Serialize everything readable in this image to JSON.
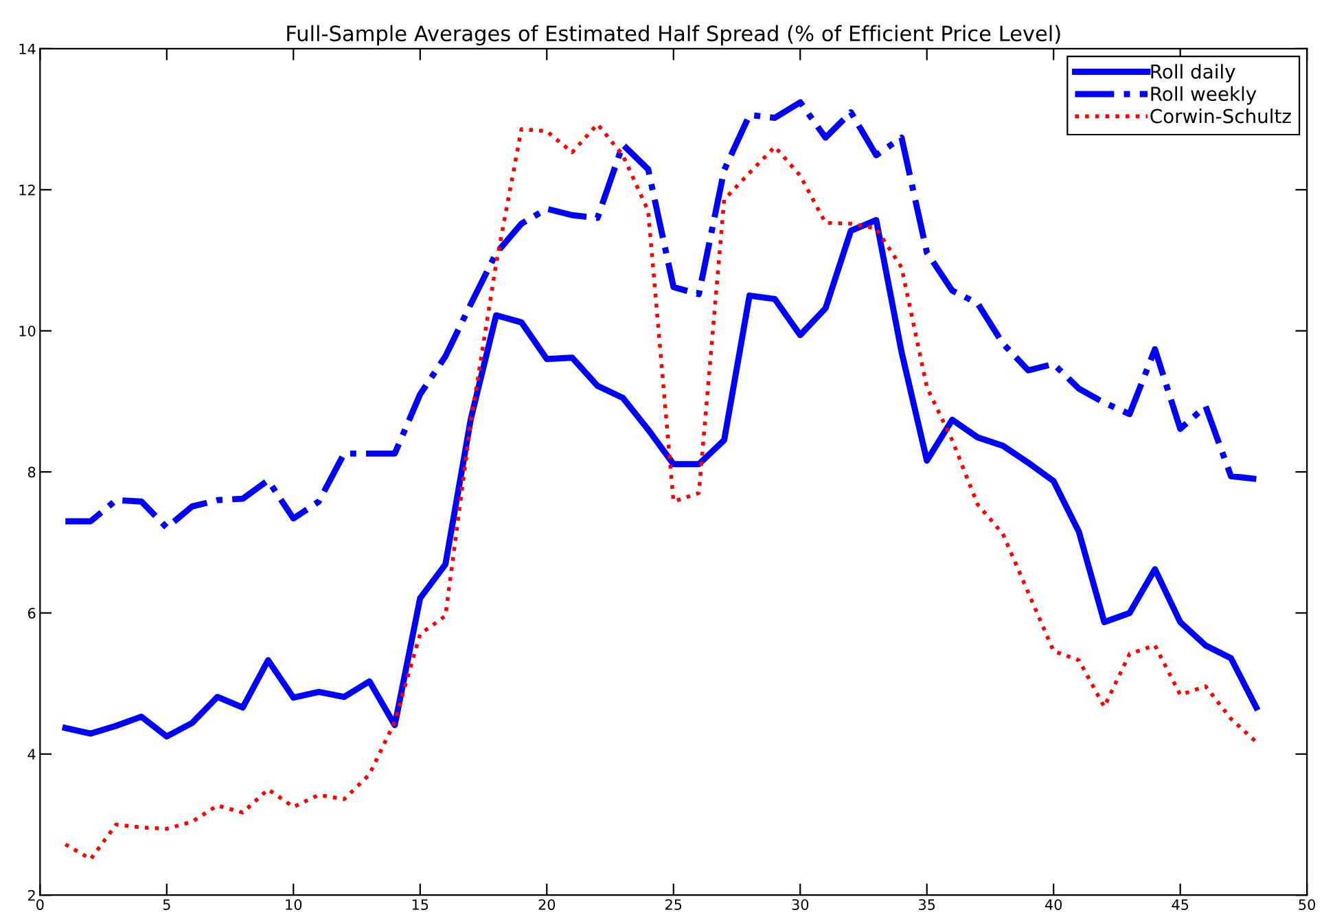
{
  "chart_data": {
    "type": "line",
    "title": "Full-Sample Averages of Estimated Half Spread (% of Efficient Price Level)",
    "x": [
      1,
      2,
      3,
      4,
      5,
      6,
      7,
      8,
      9,
      10,
      11,
      12,
      13,
      14,
      15,
      16,
      17,
      18,
      19,
      20,
      21,
      22,
      23,
      24,
      25,
      26,
      27,
      28,
      29,
      30,
      31,
      32,
      33,
      34,
      35,
      36,
      37,
      38,
      39,
      40,
      41,
      42,
      43,
      44,
      45,
      46,
      47,
      48
    ],
    "series": [
      {
        "name": "Roll daily",
        "color": "#0000ff",
        "line_style": "solid",
        "values": [
          4.37,
          4.29,
          4.4,
          4.53,
          4.25,
          4.44,
          4.81,
          4.66,
          5.33,
          4.8,
          4.88,
          4.81,
          5.03,
          4.41,
          6.21,
          6.69,
          8.75,
          10.22,
          10.12,
          9.6,
          9.62,
          9.22,
          9.05,
          8.6,
          8.11,
          8.11,
          8.45,
          10.5,
          10.45,
          9.94,
          10.32,
          11.42,
          11.57,
          9.7,
          8.16,
          8.74,
          8.49,
          8.37,
          8.13,
          7.87,
          7.15,
          5.87,
          6.0,
          6.62,
          5.87,
          5.54,
          5.36,
          4.66
        ]
      },
      {
        "name": "Roll weekly",
        "color": "#0000ff",
        "line_style": "dashdot",
        "values": [
          7.3,
          7.3,
          7.6,
          7.58,
          7.21,
          7.51,
          7.6,
          7.62,
          7.88,
          7.34,
          7.58,
          8.26,
          8.26,
          8.26,
          9.1,
          9.64,
          10.38,
          11.1,
          11.52,
          11.73,
          11.64,
          11.6,
          12.64,
          12.29,
          10.62,
          10.52,
          12.28,
          13.06,
          13.02,
          13.24,
          12.74,
          13.1,
          12.49,
          12.74,
          11.11,
          10.57,
          10.39,
          9.82,
          9.44,
          9.53,
          9.18,
          8.98,
          8.82,
          9.74,
          8.61,
          8.93,
          7.94,
          7.9
        ]
      },
      {
        "name": "Corwin-Schultz",
        "color": "#ff0000",
        "line_style": "dotted",
        "values": [
          2.72,
          2.51,
          3.0,
          2.96,
          2.94,
          3.04,
          3.27,
          3.17,
          3.5,
          3.25,
          3.42,
          3.36,
          3.71,
          4.46,
          5.7,
          5.96,
          8.7,
          10.95,
          12.86,
          12.83,
          12.53,
          12.93,
          12.49,
          11.7,
          7.58,
          7.7,
          11.86,
          12.24,
          12.61,
          12.2,
          11.53,
          11.52,
          11.45,
          10.9,
          9.2,
          8.45,
          7.54,
          7.12,
          6.29,
          5.46,
          5.33,
          4.67,
          5.42,
          5.54,
          4.84,
          4.96,
          4.5,
          4.17
        ]
      }
    ],
    "xlim": [
      0,
      50
    ],
    "xticks": [
      0,
      5,
      10,
      15,
      20,
      25,
      30,
      35,
      40,
      45,
      50
    ],
    "ylim": [
      2,
      14
    ],
    "yticks": [
      2,
      4,
      6,
      8,
      10,
      12,
      14
    ],
    "grid": false,
    "legend": "top right",
    "marker": "none"
  }
}
